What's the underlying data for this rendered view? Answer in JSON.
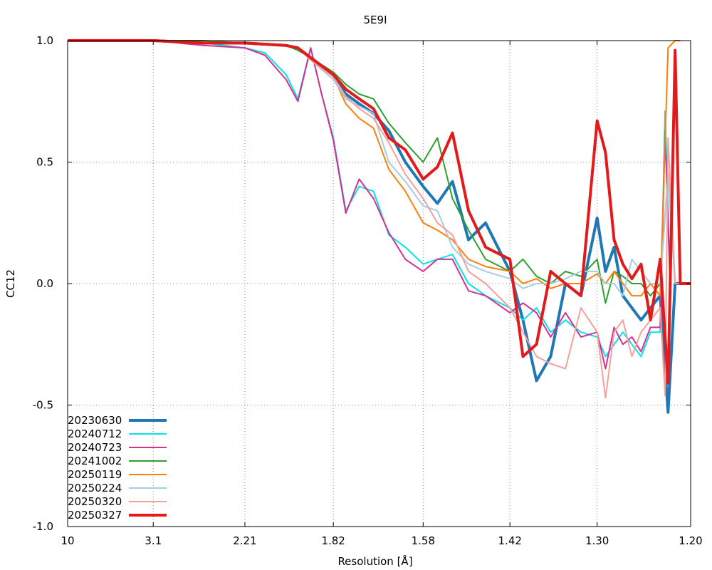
{
  "chart_data": {
    "type": "line",
    "title": "5E9I",
    "xlabel": "Resolution [Å]",
    "ylabel": "CC12",
    "x_scale": "reciprocal-squared",
    "xlim": [
      10,
      1.2
    ],
    "ylim": [
      -1.0,
      1.0
    ],
    "x_ticks": [
      {
        "v": 10,
        "label": "10"
      },
      {
        "v": 3.1,
        "label": "3.1"
      },
      {
        "v": 2.21,
        "label": "2.21"
      },
      {
        "v": 1.82,
        "label": "1.82"
      },
      {
        "v": 1.58,
        "label": "1.58"
      },
      {
        "v": 1.42,
        "label": "1.42"
      },
      {
        "v": 1.3,
        "label": "1.30"
      },
      {
        "v": 1.2,
        "label": "1.20"
      }
    ],
    "y_ticks": [
      {
        "v": 1.0,
        "label": "1.0"
      },
      {
        "v": 0.5,
        "label": "0.5"
      },
      {
        "v": 0.0,
        "label": "0.0"
      },
      {
        "v": -0.5,
        "label": "-0.5"
      },
      {
        "v": -1.0,
        "label": "-1.0"
      }
    ],
    "grid": true,
    "legend_position": "bottom-left",
    "series": [
      {
        "name": "20230630",
        "color": "#1f77b4",
        "width": 4,
        "x": [
          10,
          5,
          3.1,
          2.5,
          2.21,
          2.0,
          1.95,
          1.9,
          1.82,
          1.78,
          1.74,
          1.7,
          1.66,
          1.62,
          1.58,
          1.55,
          1.52,
          1.49,
          1.46,
          1.42,
          1.4,
          1.38,
          1.36,
          1.34,
          1.32,
          1.3,
          1.29,
          1.28,
          1.27,
          1.26,
          1.25,
          1.24,
          1.23,
          1.222,
          1.215,
          1.21,
          1.2
        ],
        "y": [
          1.0,
          1.0,
          1.0,
          0.99,
          0.99,
          0.98,
          0.97,
          0.93,
          0.86,
          0.78,
          0.74,
          0.7,
          0.63,
          0.5,
          0.4,
          0.33,
          0.42,
          0.18,
          0.25,
          0.05,
          -0.15,
          -0.4,
          -0.3,
          0.0,
          -0.05,
          0.27,
          0.05,
          0.15,
          -0.05,
          -0.1,
          -0.15,
          -0.1,
          -0.05,
          -0.53,
          0.0,
          0.0,
          0.0
        ]
      },
      {
        "name": "20240712",
        "color": "#00e5e5",
        "width": 2,
        "x": [
          10,
          5,
          3.1,
          2.5,
          2.21,
          2.1,
          2.0,
          1.95,
          1.9,
          1.86,
          1.82,
          1.78,
          1.74,
          1.7,
          1.66,
          1.62,
          1.58,
          1.55,
          1.52,
          1.49,
          1.46,
          1.42,
          1.4,
          1.38,
          1.36,
          1.34,
          1.32,
          1.3,
          1.29,
          1.28,
          1.27,
          1.26,
          1.25,
          1.24,
          1.23,
          1.225,
          1.22
        ],
        "y": [
          1.0,
          1.0,
          1.0,
          0.99,
          0.97,
          0.95,
          0.86,
          0.76,
          0.97,
          0.78,
          0.6,
          0.3,
          0.4,
          0.38,
          0.2,
          0.15,
          0.08,
          0.1,
          0.12,
          0.0,
          -0.05,
          -0.1,
          -0.15,
          -0.1,
          -0.2,
          -0.15,
          -0.2,
          -0.22,
          -0.3,
          -0.25,
          -0.2,
          -0.25,
          -0.3,
          -0.2,
          -0.2,
          0.71,
          0.0
        ]
      },
      {
        "name": "20240723",
        "color": "#d62f8f",
        "width": 2,
        "x": [
          10,
          5,
          3.1,
          2.5,
          2.21,
          2.1,
          2.0,
          1.95,
          1.9,
          1.86,
          1.82,
          1.78,
          1.74,
          1.7,
          1.66,
          1.62,
          1.58,
          1.55,
          1.52,
          1.49,
          1.46,
          1.42,
          1.4,
          1.38,
          1.36,
          1.34,
          1.32,
          1.3,
          1.29,
          1.28,
          1.27,
          1.26,
          1.25,
          1.24,
          1.23,
          1.225,
          1.22
        ],
        "y": [
          1.0,
          1.0,
          1.0,
          0.98,
          0.97,
          0.94,
          0.84,
          0.75,
          0.97,
          0.78,
          0.59,
          0.29,
          0.43,
          0.35,
          0.21,
          0.1,
          0.05,
          0.1,
          0.1,
          -0.03,
          -0.05,
          -0.12,
          -0.08,
          -0.12,
          -0.22,
          -0.12,
          -0.22,
          -0.2,
          -0.35,
          -0.18,
          -0.25,
          -0.22,
          -0.28,
          -0.18,
          -0.18,
          0.63,
          0.0
        ]
      },
      {
        "name": "20241002",
        "color": "#2ca02c",
        "width": 2,
        "x": [
          10,
          5,
          3.1,
          2.5,
          2.21,
          2.0,
          1.95,
          1.9,
          1.82,
          1.78,
          1.74,
          1.7,
          1.66,
          1.62,
          1.58,
          1.55,
          1.52,
          1.49,
          1.46,
          1.42,
          1.4,
          1.38,
          1.36,
          1.34,
          1.32,
          1.3,
          1.29,
          1.28,
          1.27,
          1.26,
          1.25,
          1.24,
          1.23,
          1.222,
          1.215,
          1.21,
          1.2
        ],
        "y": [
          1.0,
          1.0,
          1.0,
          1.0,
          0.99,
          0.98,
          0.96,
          0.93,
          0.87,
          0.82,
          0.78,
          0.76,
          0.66,
          0.58,
          0.5,
          0.6,
          0.35,
          0.22,
          0.1,
          0.05,
          0.1,
          0.03,
          0.0,
          0.05,
          0.03,
          0.1,
          -0.08,
          0.05,
          0.03,
          0.0,
          0.0,
          -0.05,
          0.0,
          0.45,
          0.0,
          0.0,
          0.0
        ]
      },
      {
        "name": "20250119",
        "color": "#ff7f0e",
        "width": 2,
        "x": [
          10,
          5,
          3.1,
          2.5,
          2.21,
          2.0,
          1.95,
          1.9,
          1.82,
          1.78,
          1.74,
          1.7,
          1.66,
          1.62,
          1.58,
          1.55,
          1.52,
          1.49,
          1.46,
          1.42,
          1.4,
          1.38,
          1.36,
          1.34,
          1.32,
          1.3,
          1.29,
          1.28,
          1.27,
          1.26,
          1.25,
          1.24,
          1.23,
          1.222,
          1.215,
          1.21
        ],
        "y": [
          1.0,
          1.0,
          1.0,
          0.99,
          0.99,
          0.98,
          0.97,
          0.93,
          0.85,
          0.74,
          0.68,
          0.64,
          0.47,
          0.38,
          0.25,
          0.22,
          0.18,
          0.1,
          0.07,
          0.05,
          0.0,
          0.02,
          -0.02,
          0.0,
          0.0,
          0.04,
          0.0,
          0.05,
          0.0,
          -0.05,
          -0.05,
          0.0,
          -0.05,
          0.97,
          1.0,
          1.0
        ]
      },
      {
        "name": "20250224",
        "color": "#a6cee3",
        "width": 2,
        "x": [
          10,
          5,
          3.1,
          2.5,
          2.21,
          2.0,
          1.95,
          1.9,
          1.82,
          1.78,
          1.74,
          1.7,
          1.66,
          1.62,
          1.58,
          1.55,
          1.52,
          1.49,
          1.46,
          1.42,
          1.4,
          1.38,
          1.36,
          1.34,
          1.32,
          1.3,
          1.29,
          1.28,
          1.27,
          1.26,
          1.25,
          1.24,
          1.23,
          1.222,
          1.215,
          1.21,
          1.2
        ],
        "y": [
          1.0,
          1.0,
          1.0,
          0.99,
          0.99,
          0.98,
          0.97,
          0.92,
          0.84,
          0.76,
          0.73,
          0.7,
          0.5,
          0.42,
          0.32,
          0.3,
          0.15,
          0.08,
          0.05,
          0.02,
          -0.02,
          0.0,
          0.0,
          0.02,
          0.05,
          0.05,
          0.0,
          0.0,
          -0.05,
          0.1,
          0.05,
          0.0,
          0.0,
          0.45,
          0.0,
          0.0,
          0.0
        ]
      },
      {
        "name": "20250320",
        "color": "#f4a09c",
        "width": 2,
        "x": [
          10,
          5,
          3.1,
          2.5,
          2.21,
          2.0,
          1.95,
          1.9,
          1.82,
          1.78,
          1.74,
          1.7,
          1.66,
          1.62,
          1.58,
          1.55,
          1.52,
          1.49,
          1.46,
          1.42,
          1.4,
          1.38,
          1.36,
          1.34,
          1.32,
          1.3,
          1.29,
          1.28,
          1.27,
          1.26,
          1.25,
          1.24,
          1.23,
          1.225,
          1.222,
          1.215,
          1.21
        ],
        "y": [
          1.0,
          1.0,
          1.0,
          0.99,
          0.99,
          0.98,
          0.97,
          0.92,
          0.85,
          0.77,
          0.72,
          0.68,
          0.58,
          0.45,
          0.35,
          0.25,
          0.2,
          0.05,
          0.0,
          -0.1,
          -0.2,
          -0.3,
          -0.33,
          -0.35,
          -0.1,
          -0.2,
          -0.47,
          -0.2,
          -0.15,
          -0.3,
          -0.2,
          -0.15,
          -0.1,
          -0.46,
          0.6,
          0.0,
          0.0
        ]
      },
      {
        "name": "20250327",
        "color": "#e31a1c",
        "width": 4,
        "x": [
          10,
          5,
          3.1,
          2.5,
          2.21,
          2.0,
          1.95,
          1.9,
          1.82,
          1.78,
          1.74,
          1.7,
          1.66,
          1.62,
          1.58,
          1.55,
          1.52,
          1.49,
          1.46,
          1.42,
          1.4,
          1.38,
          1.36,
          1.34,
          1.32,
          1.3,
          1.29,
          1.28,
          1.27,
          1.26,
          1.25,
          1.24,
          1.23,
          1.222,
          1.215,
          1.21,
          1.2
        ],
        "y": [
          1.0,
          1.0,
          1.0,
          0.99,
          0.99,
          0.98,
          0.97,
          0.93,
          0.86,
          0.8,
          0.76,
          0.72,
          0.6,
          0.55,
          0.43,
          0.48,
          0.62,
          0.3,
          0.15,
          0.1,
          -0.3,
          -0.25,
          0.05,
          0.0,
          -0.05,
          0.67,
          0.54,
          0.18,
          0.08,
          0.02,
          0.08,
          -0.15,
          0.1,
          -0.41,
          0.96,
          0.0,
          0.0
        ]
      }
    ]
  }
}
